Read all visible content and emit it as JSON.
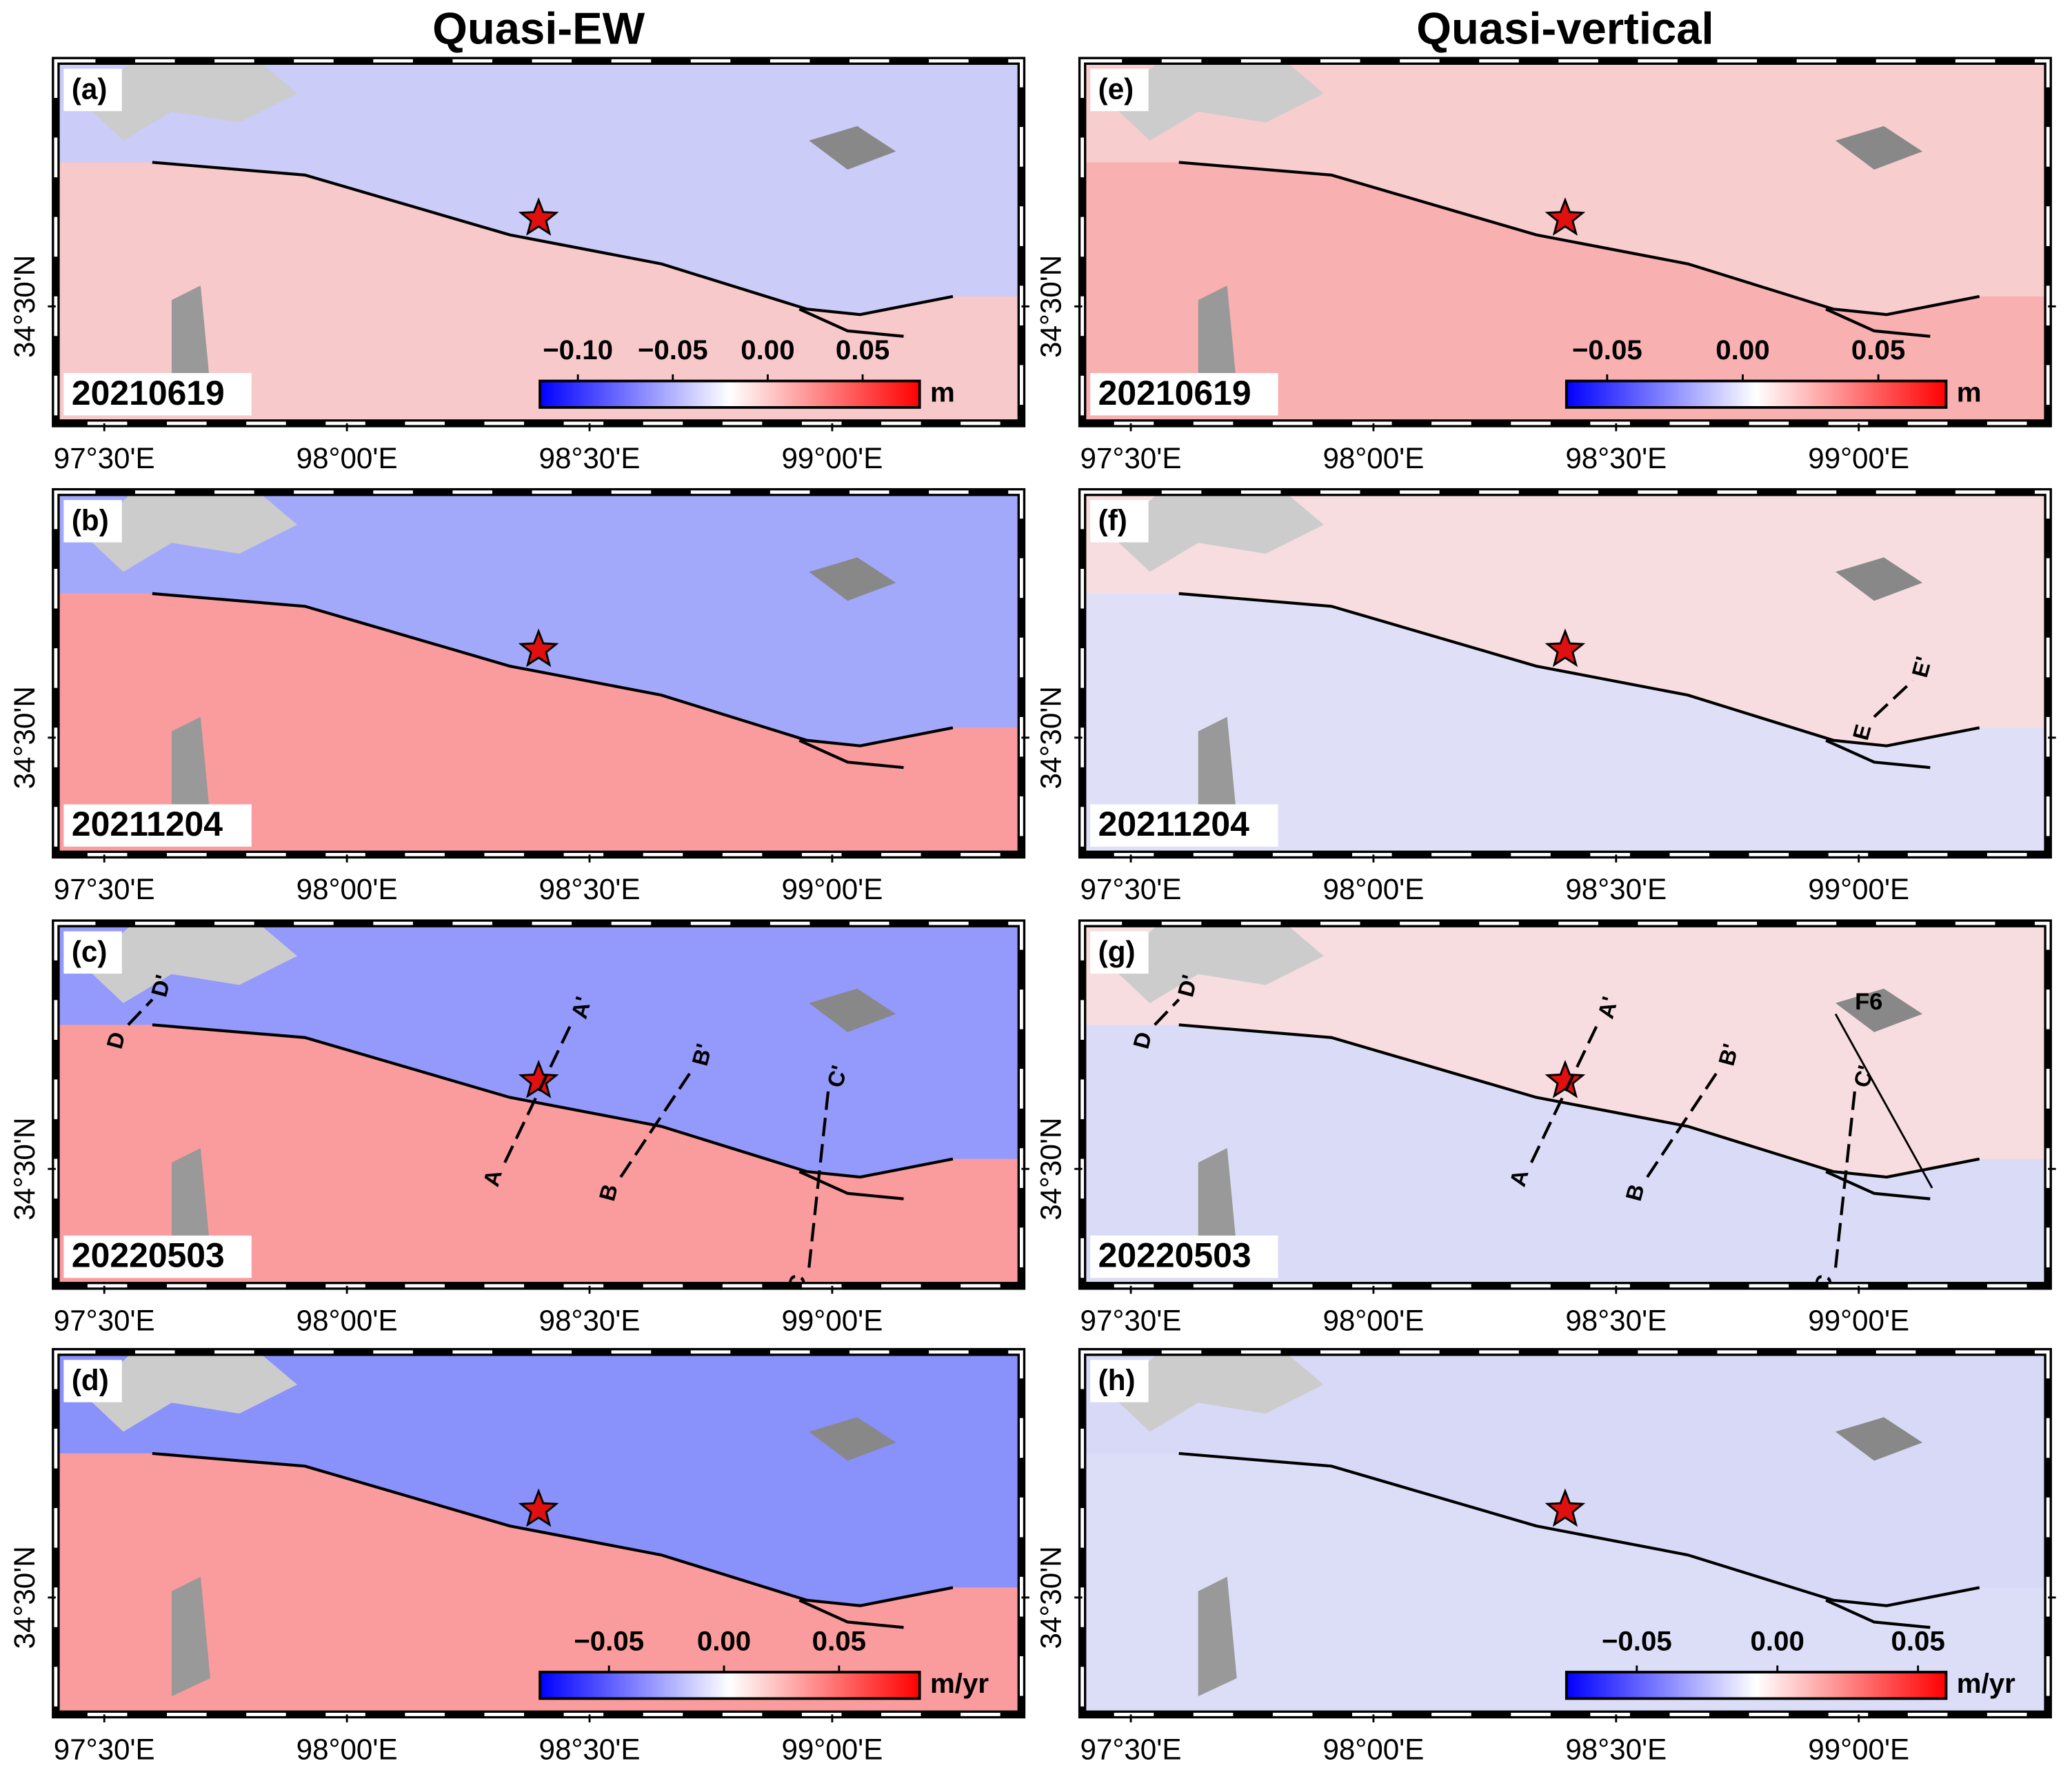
{
  "columns": [
    "Quasi-EW",
    "Quasi-vertical"
  ],
  "map": {
    "xlim": [
      97.4,
      99.39
    ],
    "ylim": [
      34.3,
      34.92
    ],
    "xticks": [
      {
        "value": 97.5,
        "label": "97°30'E"
      },
      {
        "value": 98.0,
        "label": "98°00'E"
      },
      {
        "value": 98.5,
        "label": "98°30'E"
      },
      {
        "value": 99.0,
        "label": "99°00'E"
      }
    ],
    "yticks": [
      {
        "value": 34.5,
        "label": "34°30'N"
      }
    ]
  },
  "panels": [
    {
      "label": "(a)",
      "date": "20210619",
      "colorbar": {
        "clim": [
          -0.12,
          0.08
        ],
        "ticks": [
          {
            "value": -0.1,
            "label": "−0.10"
          },
          {
            "value": -0.05,
            "label": "−0.05"
          },
          {
            "value": 0,
            "label": "0.00"
          },
          0.05
        ],
        "unit": "m"
      }
    },
    {
      "label": "(b)",
      "date": "20211204"
    },
    {
      "label": "(c)",
      "date": "20220503",
      "profiles": [
        [
          "A",
          "A'"
        ],
        [
          "B",
          "B'"
        ],
        [
          "C",
          "C'"
        ],
        [
          "D",
          "D'"
        ]
      ]
    },
    {
      "label": "(d)",
      "colorbar": {
        "clim": [
          -0.08,
          0.085
        ],
        "ticks": [
          {
            "value": -0.05,
            "label": "−0.05"
          },
          {
            "value": 0,
            "label": "0.00"
          },
          0.05
        ],
        "unit": "m/yr"
      }
    },
    {
      "label": "(e)",
      "date": "20210619",
      "colorbar": {
        "clim": [
          -0.065,
          0.075
        ],
        "ticks": [
          {
            "value": -0.05,
            "label": "−0.05"
          },
          {
            "value": 0,
            "label": "0.00"
          },
          0.05
        ],
        "unit": "m"
      }
    },
    {
      "label": "(f)",
      "date": "20211204",
      "profiles": [
        [
          "E",
          "E'"
        ]
      ]
    },
    {
      "label": "(g)",
      "date": "20220503",
      "profiles": [
        [
          "A",
          "A'"
        ],
        [
          "B",
          "B'"
        ],
        [
          "C",
          "C'"
        ],
        [
          "D",
          "D'"
        ]
      ],
      "fault_label": "F6"
    },
    {
      "label": "(h)",
      "colorbar": {
        "clim": [
          -0.075,
          0.06
        ],
        "ticks": [
          {
            "value": -0.05,
            "label": "−0.05"
          },
          {
            "value": 0,
            "label": "0.00"
          },
          0.05
        ],
        "unit": "m/yr"
      }
    }
  ]
}
